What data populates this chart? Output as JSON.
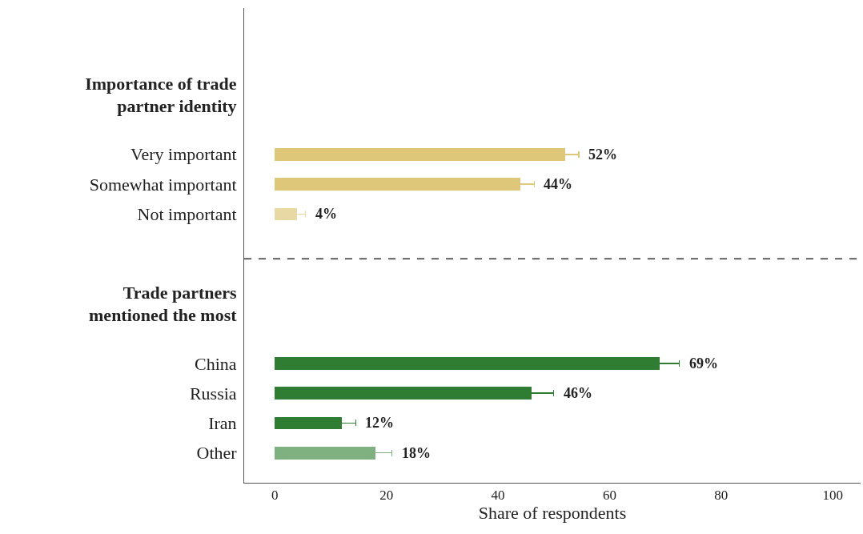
{
  "chart_data": {
    "type": "bar",
    "orientation": "horizontal",
    "xlabel": "Share of respondents",
    "categories": [
      "Importance of trade partner identity",
      null,
      "Very important",
      "Somewhat important",
      "Not important",
      null,
      null,
      "Trade partners mentioned the most",
      null,
      "China",
      "Russia",
      "Iran",
      "Other"
    ],
    "values": [
      null,
      null,
      52,
      44,
      4,
      null,
      null,
      null,
      null,
      69,
      46,
      12,
      18
    ],
    "errors": [
      null,
      null,
      2.5,
      2.5,
      1.5,
      null,
      null,
      null,
      null,
      3.5,
      4,
      2.5,
      3
    ],
    "value_labels": [
      null,
      null,
      "52%",
      "44%",
      "4%",
      null,
      null,
      null,
      null,
      "69%",
      "46%",
      "12%",
      "18%"
    ],
    "colors": [
      "#dfc77a",
      "#dfc77a",
      "#dfc77a",
      "#dfc77a",
      "#e8d9a4",
      "#dfc77a",
      "#dfc77a",
      "#2e7d32",
      "#2e7d32",
      "#2e7d32",
      "#2e7d32",
      "#2e7d32",
      "#7fb07f"
    ],
    "xlim": [
      -5.5,
      105
    ],
    "xticks": [
      0,
      20,
      40,
      60,
      80,
      100
    ]
  }
}
